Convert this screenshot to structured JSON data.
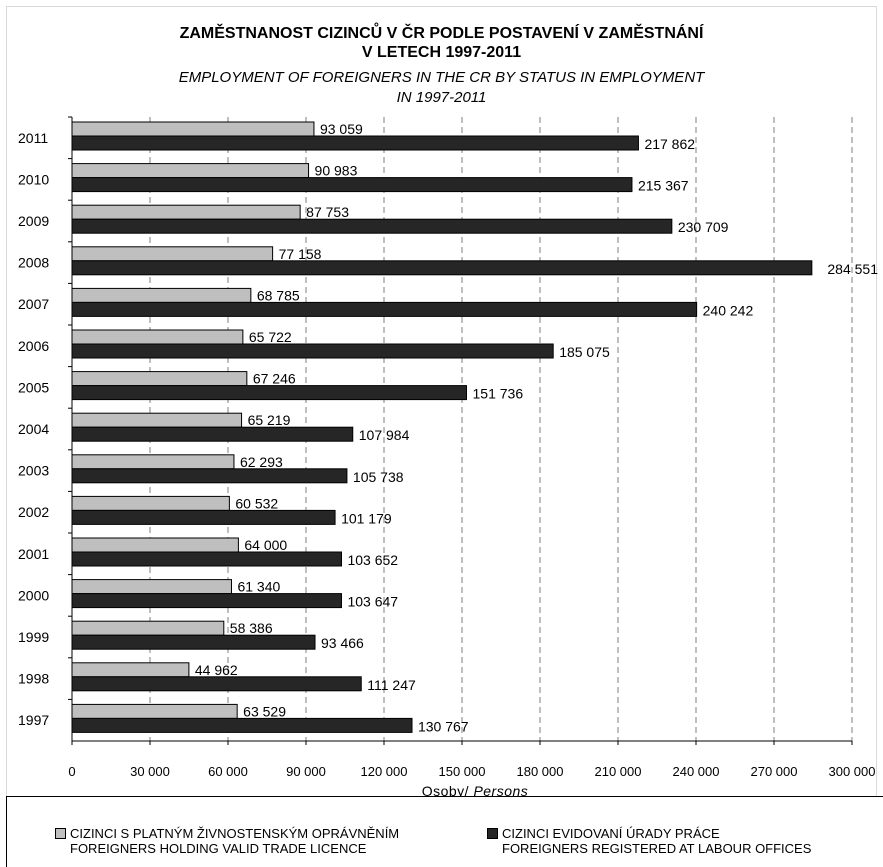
{
  "title": {
    "cz_line1": "ZAMĚSTNANOST CIZINCŮ V ČR PODLE POSTAVENÍ V ZAMĚSTNÁNÍ",
    "cz_line2": "V LETECH 1997-2011",
    "en_line1": "EMPLOYMENT OF FOREIGNERS IN THE CR BY STATUS IN EMPLOYMENT",
    "en_line2": "IN 1997-2011"
  },
  "axis": {
    "xlabel_cz": "Osoby/ ",
    "xlabel_en": "Persons"
  },
  "legend": {
    "light": {
      "line1": "CIZINCI S PLATNÝM ŽIVNOSTENSKÝM OPRÁVNĚNÍM",
      "line2": "FOREIGNERS HOLDING VALID TRADE LICENCE",
      "color": "#bfbfbf"
    },
    "dark": {
      "line1": "CIZINCI EVIDOVANÍ ÚRADY PRÁCE",
      "line2": "FOREIGNERS REGISTERED AT LABOUR OFFICES",
      "color": "#262626"
    }
  },
  "chart_data": {
    "type": "bar",
    "orientation": "horizontal",
    "title": "ZAMĚSTNANOST CIZINCŮ V ČR PODLE POSTAVENÍ V ZAMĚSTNÁNÍ V LETECH 1997-2011 / EMPLOYMENT OF FOREIGNERS IN THE CR BY STATUS IN EMPLOYMENT IN 1997-2011",
    "xlabel": "Osoby/ Persons",
    "ylabel": "",
    "categories": [
      "2011",
      "2010",
      "2009",
      "2008",
      "2007",
      "2006",
      "2005",
      "2004",
      "2003",
      "2002",
      "2001",
      "2000",
      "1999",
      "1998",
      "1997"
    ],
    "series": [
      {
        "name": "CIZINCI S PLATNÝM ŽIVNOSTENSKÝM OPRÁVNĚNÍM / FOREIGNERS HOLDING VALID TRADE LICENCE",
        "color": "#bfbfbf",
        "values": [
          93059,
          90983,
          87753,
          77158,
          68785,
          65722,
          67246,
          65219,
          62293,
          60532,
          64000,
          61340,
          58386,
          44962,
          63529
        ],
        "labels": [
          "93 059",
          "90 983",
          "87 753",
          "77 158",
          "68 785",
          "65 722",
          "67 246",
          "65 219",
          "62 293",
          "60 532",
          "64 000",
          "61 340",
          "58 386",
          "44 962",
          "63 529"
        ]
      },
      {
        "name": "CIZINCI EVIDOVANÍ ÚRADY PRÁCE / FOREIGNERS REGISTERED AT LABOUR OFFICES",
        "color": "#262626",
        "values": [
          217862,
          215367,
          230709,
          284551,
          240242,
          185075,
          151736,
          107984,
          105738,
          101179,
          103652,
          103647,
          93466,
          111247,
          130767
        ],
        "labels": [
          "217 862",
          "215 367",
          "230 709",
          "284 551",
          "240 242",
          "185 075",
          "151 736",
          "107 984",
          "105 738",
          "101 179",
          "103 652",
          "103 647",
          "93 466",
          "111 247",
          "130 767"
        ]
      }
    ],
    "xlim": [
      0,
      300000
    ],
    "x_ticks": [
      0,
      30000,
      60000,
      90000,
      120000,
      150000,
      180000,
      210000,
      240000,
      270000,
      300000
    ],
    "x_tick_labels": [
      "0",
      "30 000",
      "60 000",
      "90 000",
      "120 000",
      "150 000",
      "180 000",
      "210 000",
      "240 000",
      "270 000",
      "300 000"
    ],
    "grid": "vertical dashed",
    "legend_position": "bottom"
  }
}
